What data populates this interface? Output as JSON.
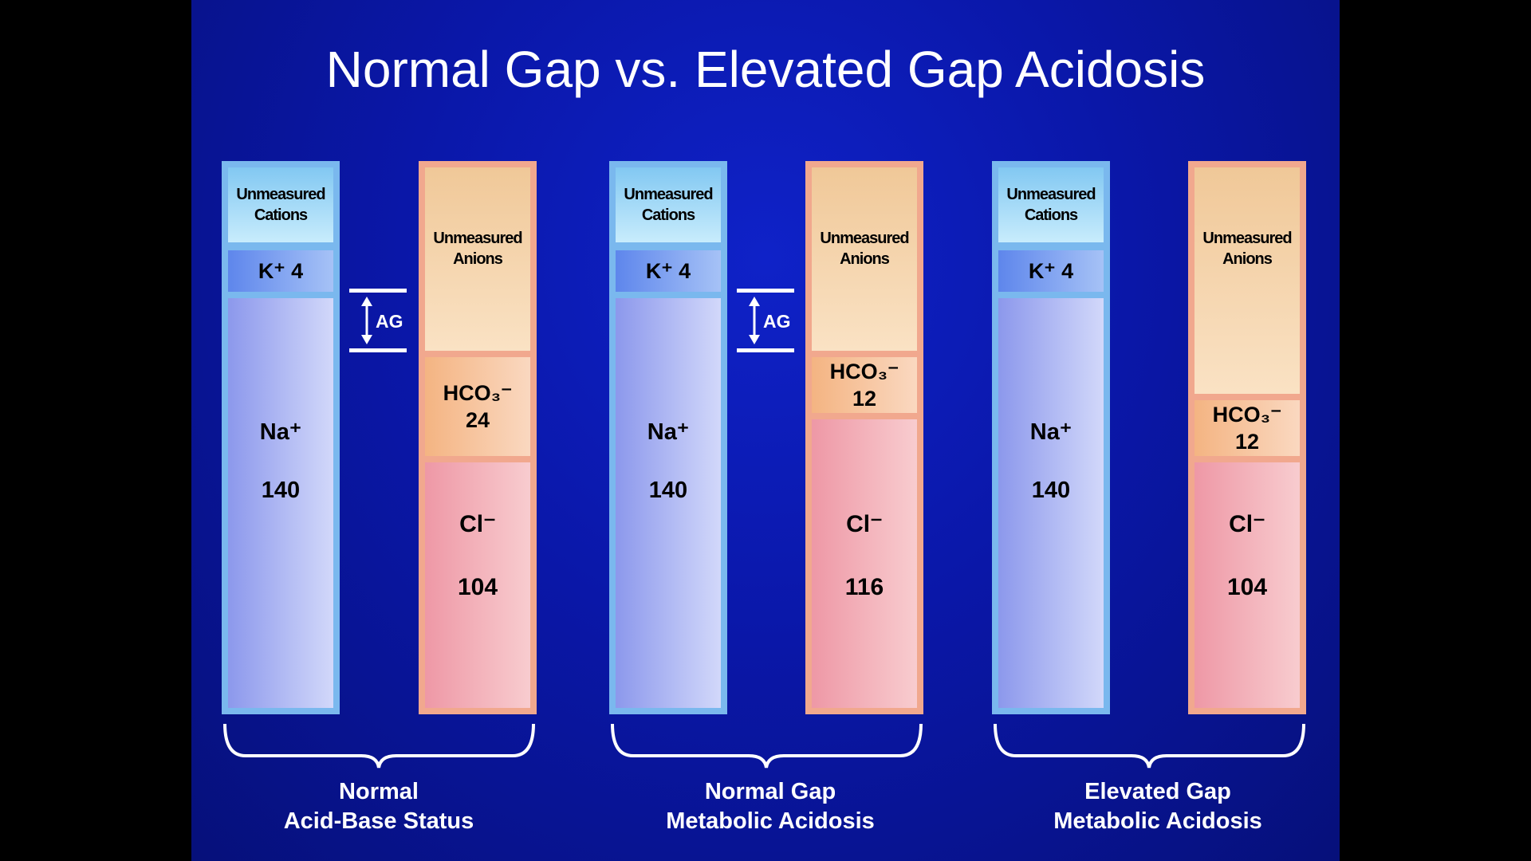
{
  "title": "Normal Gap vs. Elevated Gap Acidosis",
  "ag_label": "AG",
  "groups": [
    {
      "label_line1": "Normal",
      "label_line2": "Acid-Base Status",
      "cations": {
        "unmeasured_line1": "Unmeasured",
        "unmeasured_line2": "Cations",
        "k": "K⁺ 4",
        "na": "Na⁺",
        "na_value": "140"
      },
      "anions": {
        "unmeasured_line1": "Unmeasured",
        "unmeasured_line2": "Anions",
        "hco3": "HCO₃⁻",
        "hco3_value": "24",
        "cl": "Cl⁻",
        "cl_value": "104"
      }
    },
    {
      "label_line1": "Normal Gap",
      "label_line2": "Metabolic Acidosis",
      "cations": {
        "unmeasured_line1": "Unmeasured",
        "unmeasured_line2": "Cations",
        "k": "K⁺ 4",
        "na": "Na⁺",
        "na_value": "140"
      },
      "anions": {
        "unmeasured_line1": "Unmeasured",
        "unmeasured_line2": "Anions",
        "hco3": "HCO₃⁻",
        "hco3_value": "12",
        "cl": "Cl⁻",
        "cl_value": "116"
      }
    },
    {
      "label_line1": "Elevated Gap",
      "label_line2": "Metabolic Acidosis",
      "cations": {
        "unmeasured_line1": "Unmeasured",
        "unmeasured_line2": "Cations",
        "k": "K⁺ 4",
        "na": "Na⁺",
        "na_value": "140"
      },
      "anions": {
        "unmeasured_line1": "Unmeasured",
        "unmeasured_line2": "Anions",
        "hco3": "HCO₃⁻",
        "hco3_value": "12",
        "cl": "Cl⁻",
        "cl_value": "104"
      }
    }
  ]
}
